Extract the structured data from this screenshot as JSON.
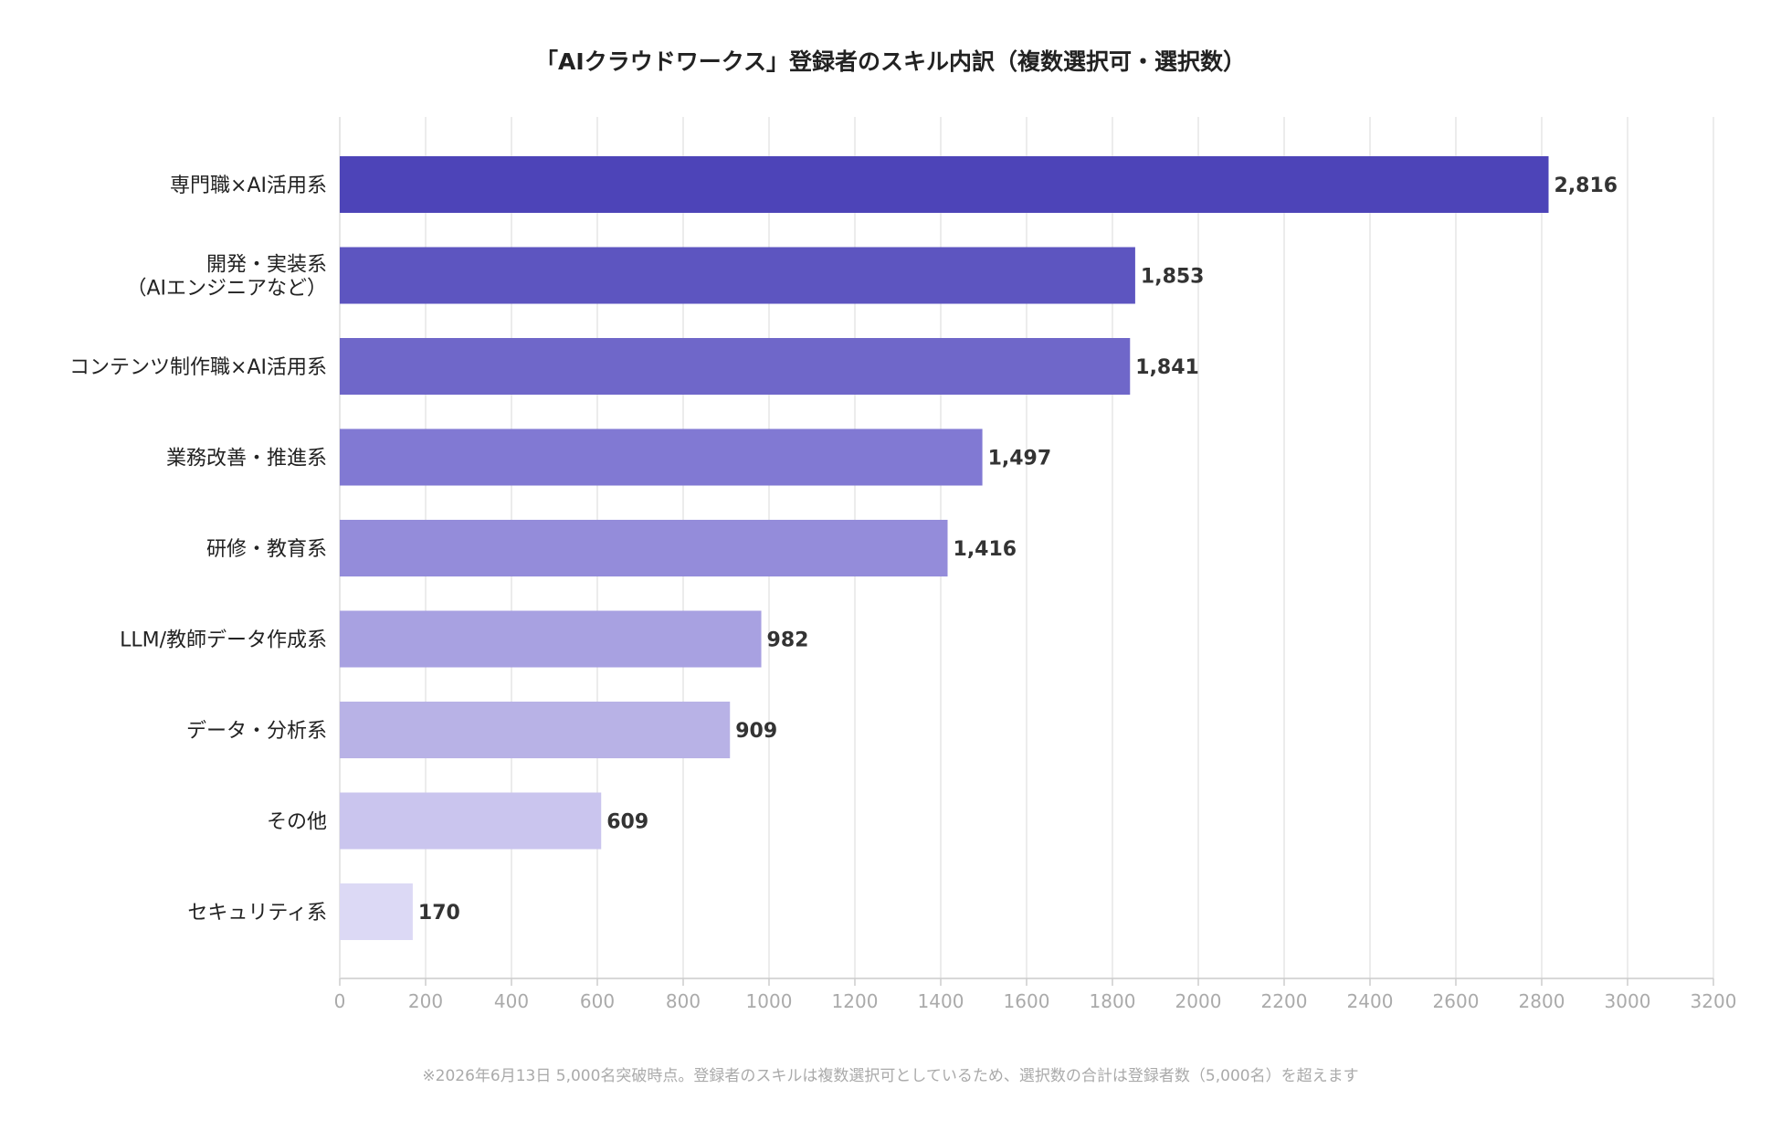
{
  "chart_data": {
    "type": "bar",
    "orientation": "horizontal",
    "title": "「AIクラウドワークス」登録者のスキル内訳（複数選択可・選択数）",
    "categories": [
      "専門職×AI活用系",
      "開発・実装系\n（AIエンジニアなど）",
      "コンテンツ制作職×AI活用系",
      "業務改善・推進系",
      "研修・教育系",
      "LLM/教師データ作成系",
      "データ・分析系",
      "その他",
      "セキュリティ系"
    ],
    "values": [
      2816,
      1853,
      1841,
      1497,
      1416,
      982,
      909,
      609,
      170
    ],
    "value_labels": [
      "2,816",
      "1,853",
      "1,841",
      "1,497",
      "1,416",
      "982",
      "909",
      "609",
      "170"
    ],
    "colors": [
      "#4d44b8",
      "#5d55c0",
      "#6f67c9",
      "#8179d3",
      "#948cda",
      "#a8a1e1",
      "#b8b2e6",
      "#cac5ee",
      "#dcd9f5"
    ],
    "xlim": [
      0,
      3200
    ],
    "xticks": [
      0,
      200,
      400,
      600,
      800,
      1000,
      1200,
      1400,
      1600,
      1800,
      2000,
      2200,
      2400,
      2600,
      2800,
      3000,
      3200
    ],
    "grid": true,
    "legend": "none"
  },
  "footnote": "※2026年6月13日 5,000名突破時点。登録者のスキルは複数選択可としているため、選択数の合計は登録者数（5,000名）を超えます"
}
